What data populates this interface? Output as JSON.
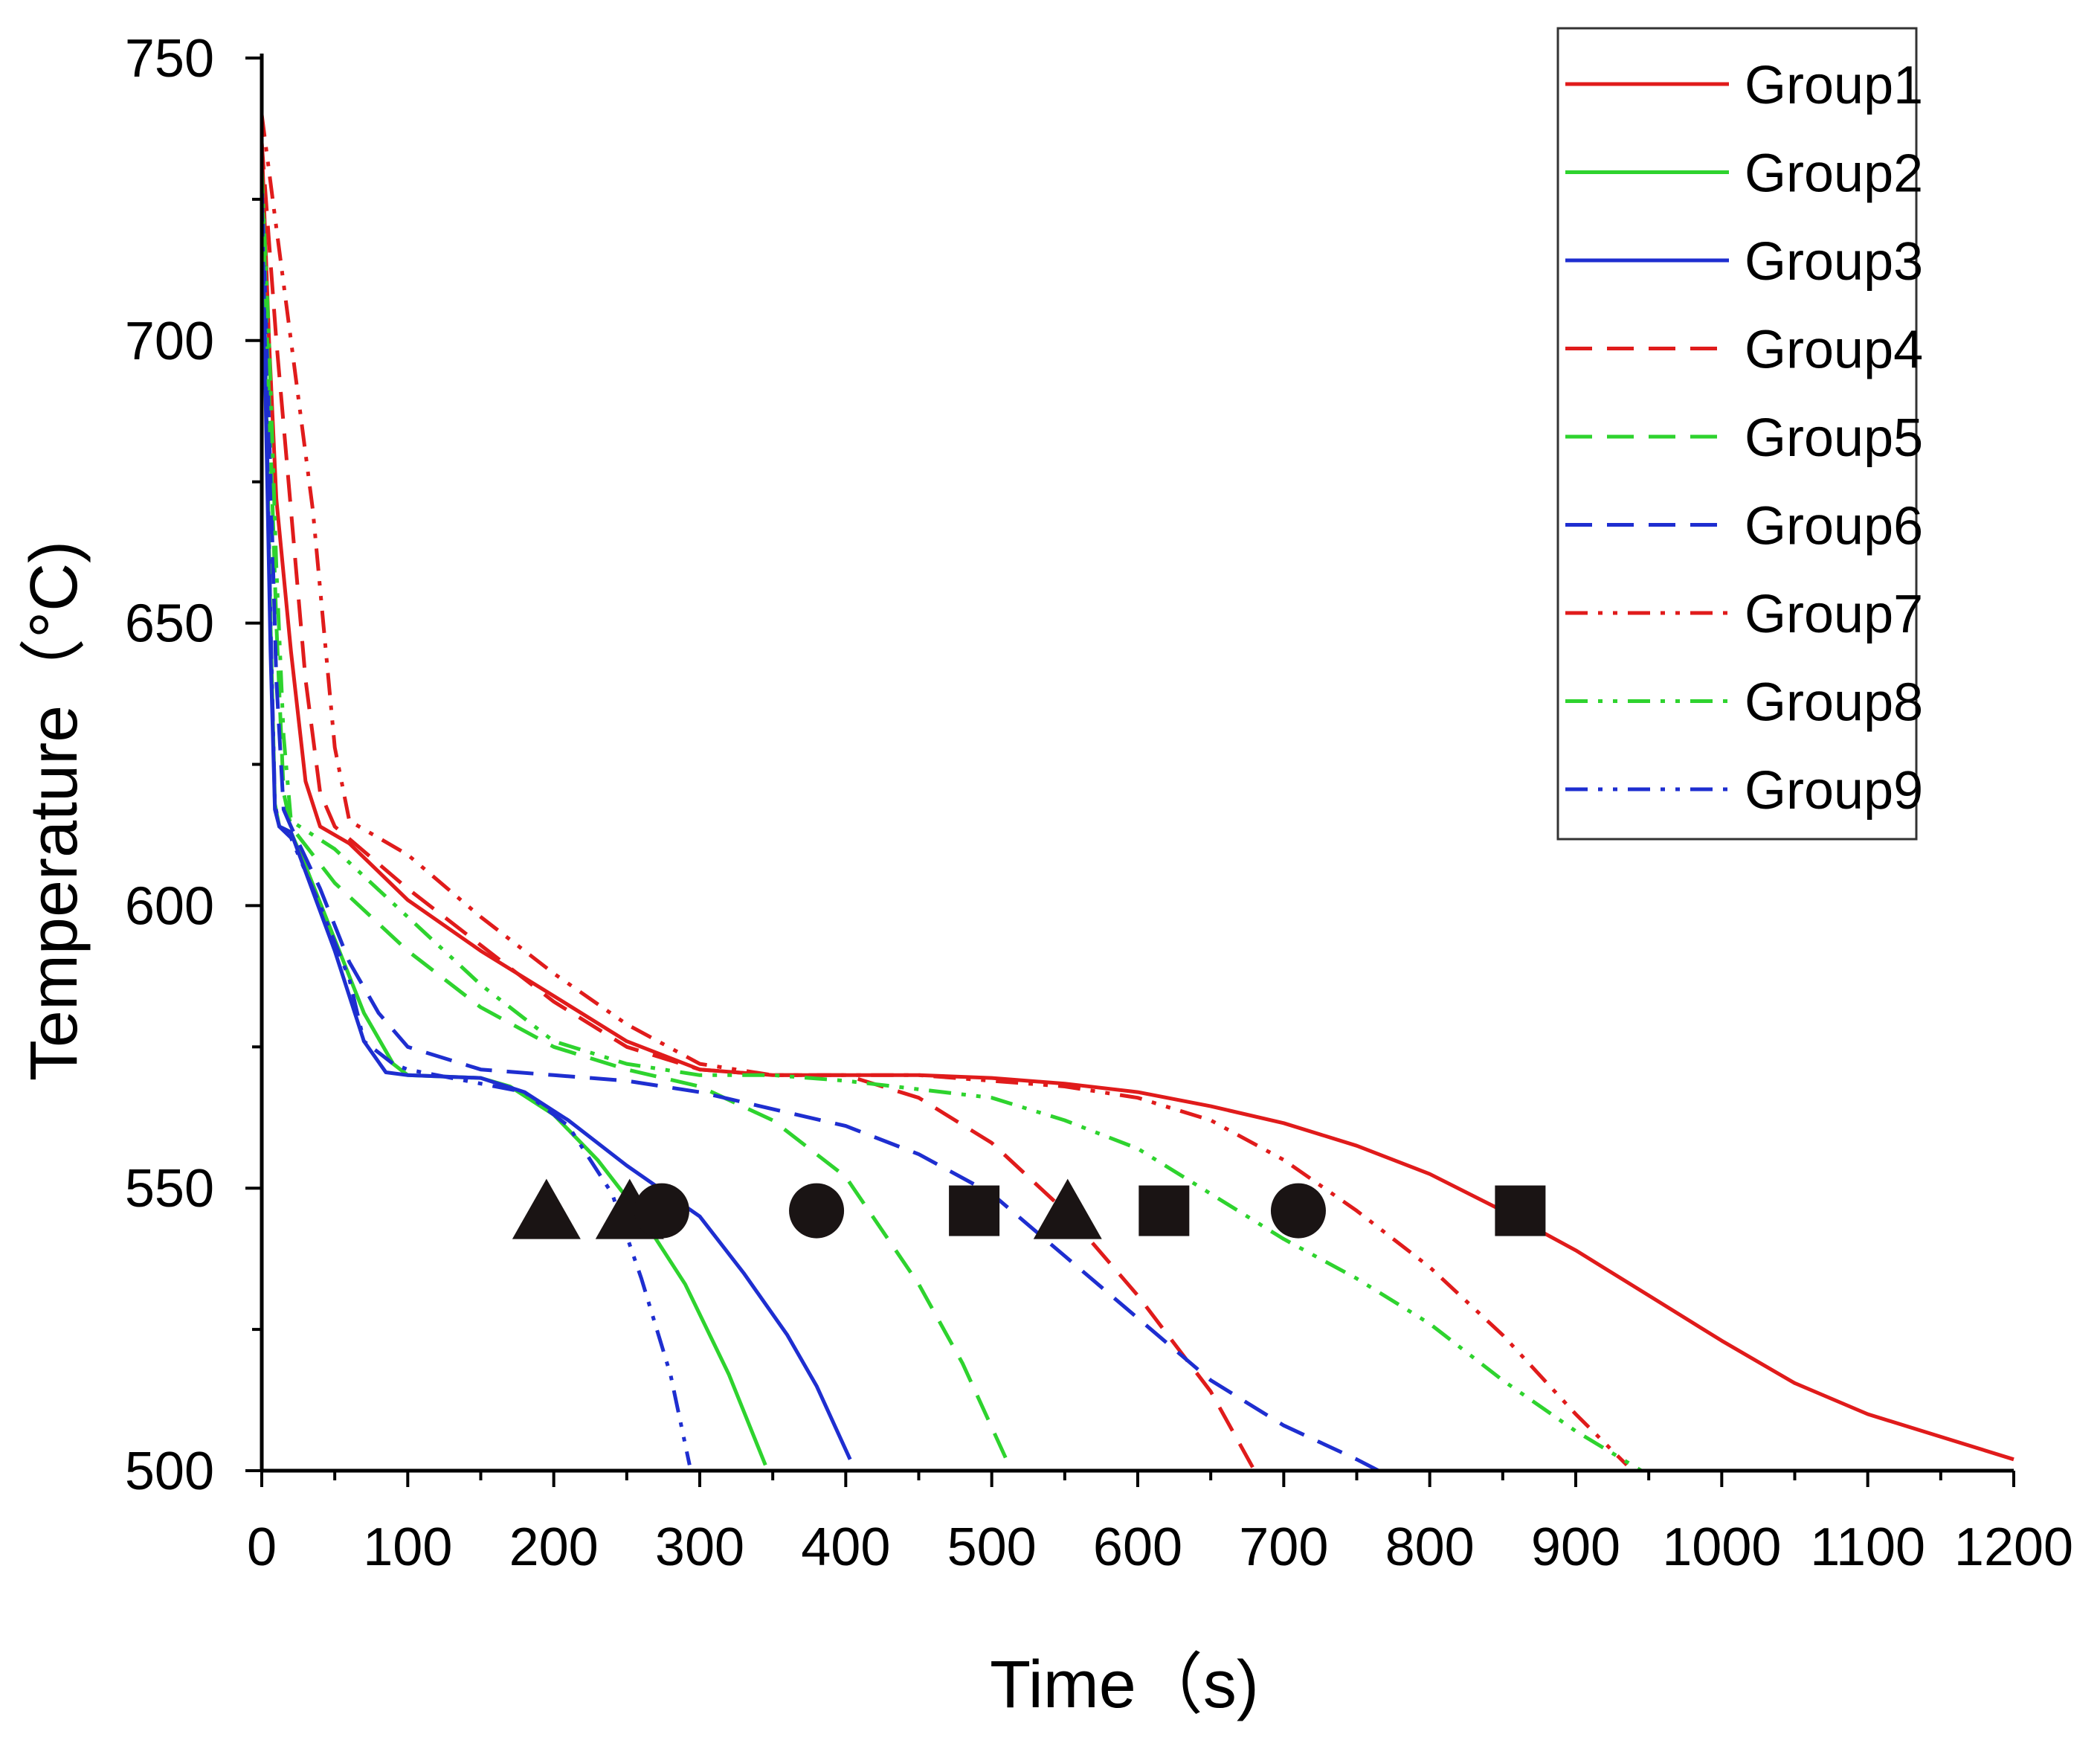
{
  "chart_data": {
    "type": "line",
    "title": "",
    "xlabel": "Time（s)",
    "ylabel": "Temperature（°C)",
    "xlim": [
      0,
      1200
    ],
    "ylim": [
      500,
      750
    ],
    "xticks": [
      0,
      100,
      200,
      300,
      400,
      500,
      600,
      700,
      800,
      900,
      1000,
      1100,
      1200
    ],
    "yticks": [
      500,
      550,
      600,
      650,
      700,
      750
    ],
    "x_minor_step": 50,
    "y_minor_step": 25,
    "grid": false,
    "legend_position": "top-right",
    "series": [
      {
        "name": "Group1",
        "color": "#e01b1b",
        "dash": "solid",
        "points": [
          [
            0,
            735
          ],
          [
            5,
            700
          ],
          [
            10,
            672
          ],
          [
            20,
            645
          ],
          [
            30,
            622
          ],
          [
            40,
            614
          ],
          [
            60,
            611
          ],
          [
            80,
            606
          ],
          [
            100,
            601
          ],
          [
            150,
            592
          ],
          [
            200,
            584
          ],
          [
            250,
            576
          ],
          [
            300,
            571
          ],
          [
            350,
            570
          ],
          [
            400,
            570
          ],
          [
            450,
            570
          ],
          [
            500,
            569.5
          ],
          [
            550,
            568.5
          ],
          [
            600,
            567
          ],
          [
            650,
            564.5
          ],
          [
            700,
            561.5
          ],
          [
            750,
            557.5
          ],
          [
            800,
            552.5
          ],
          [
            850,
            546
          ],
          [
            900,
            539
          ],
          [
            950,
            531
          ],
          [
            1000,
            523
          ],
          [
            1050,
            515.5
          ],
          [
            1100,
            510
          ],
          [
            1150,
            506
          ],
          [
            1200,
            502
          ]
        ]
      },
      {
        "name": "Group2",
        "color": "#2ed32e",
        "dash": "solid",
        "points": [
          [
            0,
            730
          ],
          [
            3,
            690
          ],
          [
            6,
            650
          ],
          [
            9,
            618
          ],
          [
            12,
            614
          ],
          [
            20,
            613
          ],
          [
            30,
            607
          ],
          [
            50,
            594
          ],
          [
            70,
            581
          ],
          [
            90,
            572
          ],
          [
            100,
            570
          ],
          [
            150,
            569.5
          ],
          [
            170,
            568
          ],
          [
            200,
            563
          ],
          [
            230,
            555
          ],
          [
            260,
            545
          ],
          [
            290,
            533
          ],
          [
            320,
            517
          ],
          [
            345,
            501
          ]
        ]
      },
      {
        "name": "Group3",
        "color": "#1e2ed0",
        "dash": "solid",
        "points": [
          [
            0,
            728
          ],
          [
            3,
            685
          ],
          [
            6,
            645
          ],
          [
            9,
            617
          ],
          [
            12,
            614
          ],
          [
            20,
            613
          ],
          [
            30,
            606
          ],
          [
            50,
            592
          ],
          [
            70,
            576
          ],
          [
            85,
            570.5
          ],
          [
            100,
            570
          ],
          [
            150,
            569.5
          ],
          [
            180,
            567
          ],
          [
            210,
            562
          ],
          [
            250,
            554
          ],
          [
            300,
            545
          ],
          [
            330,
            535
          ],
          [
            360,
            524
          ],
          [
            380,
            515
          ],
          [
            403,
            502
          ]
        ]
      },
      {
        "name": "Group4",
        "color": "#e01b1b",
        "dash": "dashed",
        "points": [
          [
            0,
            735
          ],
          [
            10,
            700
          ],
          [
            20,
            670
          ],
          [
            30,
            640
          ],
          [
            40,
            620
          ],
          [
            50,
            614
          ],
          [
            100,
            603
          ],
          [
            150,
            593
          ],
          [
            200,
            583
          ],
          [
            250,
            575
          ],
          [
            300,
            571
          ],
          [
            350,
            570
          ],
          [
            400,
            570
          ],
          [
            450,
            566
          ],
          [
            500,
            558
          ],
          [
            550,
            546
          ],
          [
            600,
            531
          ],
          [
            650,
            514
          ],
          [
            680,
            500
          ]
        ]
      },
      {
        "name": "Group5",
        "color": "#2ed32e",
        "dash": "dashed",
        "points": [
          [
            0,
            730
          ],
          [
            5,
            690
          ],
          [
            10,
            650
          ],
          [
            15,
            620
          ],
          [
            20,
            614
          ],
          [
            50,
            604
          ],
          [
            100,
            592
          ],
          [
            150,
            582
          ],
          [
            200,
            575
          ],
          [
            250,
            571
          ],
          [
            300,
            568
          ],
          [
            350,
            562
          ],
          [
            400,
            552
          ],
          [
            450,
            533
          ],
          [
            480,
            519
          ],
          [
            510,
            502
          ]
        ]
      },
      {
        "name": "Group6",
        "color": "#1e2ed0",
        "dash": "dashed",
        "points": [
          [
            0,
            728
          ],
          [
            5,
            685
          ],
          [
            10,
            640
          ],
          [
            15,
            617
          ],
          [
            20,
            614
          ],
          [
            40,
            603
          ],
          [
            60,
            590
          ],
          [
            80,
            581
          ],
          [
            100,
            575
          ],
          [
            150,
            571
          ],
          [
            200,
            570
          ],
          [
            250,
            569
          ],
          [
            300,
            567
          ],
          [
            350,
            564
          ],
          [
            400,
            561
          ],
          [
            450,
            556
          ],
          [
            500,
            549
          ],
          [
            550,
            538
          ],
          [
            600,
            527
          ],
          [
            650,
            516
          ],
          [
            700,
            508
          ],
          [
            750,
            502
          ],
          [
            765,
            500
          ]
        ]
      },
      {
        "name": "Group7",
        "color": "#e01b1b",
        "dash": "dashdotdot",
        "points": [
          [
            0,
            740
          ],
          [
            10,
            720
          ],
          [
            20,
            700
          ],
          [
            35,
            670
          ],
          [
            50,
            628
          ],
          [
            60,
            615
          ],
          [
            80,
            612
          ],
          [
            100,
            609
          ],
          [
            150,
            598
          ],
          [
            200,
            588
          ],
          [
            250,
            579
          ],
          [
            300,
            572
          ],
          [
            350,
            570
          ],
          [
            450,
            570
          ],
          [
            500,
            569
          ],
          [
            550,
            568
          ],
          [
            600,
            566
          ],
          [
            650,
            562
          ],
          [
            700,
            555
          ],
          [
            750,
            546
          ],
          [
            800,
            536
          ],
          [
            850,
            524
          ],
          [
            900,
            510
          ],
          [
            935,
            501
          ]
        ]
      },
      {
        "name": "Group8",
        "color": "#2ed32e",
        "dash": "dashdotdot",
        "points": [
          [
            0,
            730
          ],
          [
            5,
            700
          ],
          [
            10,
            660
          ],
          [
            15,
            630
          ],
          [
            20,
            615
          ],
          [
            50,
            610
          ],
          [
            100,
            598
          ],
          [
            150,
            586
          ],
          [
            200,
            576
          ],
          [
            250,
            572
          ],
          [
            300,
            570
          ],
          [
            350,
            570
          ],
          [
            400,
            569
          ],
          [
            500,
            566
          ],
          [
            550,
            562
          ],
          [
            600,
            557
          ],
          [
            650,
            549
          ],
          [
            700,
            541
          ],
          [
            750,
            534
          ],
          [
            800,
            526
          ],
          [
            850,
            516
          ],
          [
            900,
            507
          ],
          [
            945,
            500
          ]
        ]
      },
      {
        "name": "Group9",
        "color": "#1e2ed0",
        "dash": "dashdotdot",
        "points": [
          [
            0,
            725
          ],
          [
            3,
            690
          ],
          [
            6,
            650
          ],
          [
            9,
            618
          ],
          [
            12,
            614
          ],
          [
            20,
            612
          ],
          [
            40,
            600
          ],
          [
            60,
            587
          ],
          [
            70,
            576
          ],
          [
            90,
            572
          ],
          [
            100,
            571
          ],
          [
            150,
            568.5
          ],
          [
            180,
            567
          ],
          [
            210,
            561
          ],
          [
            240,
            549
          ],
          [
            260,
            534
          ],
          [
            280,
            517
          ],
          [
            293,
            501
          ]
        ]
      }
    ],
    "markers": [
      {
        "shape": "triangle",
        "x": 195,
        "y": 546
      },
      {
        "shape": "triangle",
        "x": 252,
        "y": 546
      },
      {
        "shape": "circle",
        "x": 274,
        "y": 546
      },
      {
        "shape": "circle",
        "x": 380,
        "y": 546
      },
      {
        "shape": "square",
        "x": 488,
        "y": 546
      },
      {
        "shape": "triangle",
        "x": 552,
        "y": 546
      },
      {
        "shape": "square",
        "x": 618,
        "y": 546
      },
      {
        "shape": "circle",
        "x": 710,
        "y": 546
      },
      {
        "shape": "square",
        "x": 862,
        "y": 546
      }
    ]
  }
}
